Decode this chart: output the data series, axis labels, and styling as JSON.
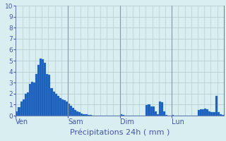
{
  "title": "Précipitations 24h ( mm )",
  "background_color": "#d8eef0",
  "plot_bg_color": "#d8eef0",
  "bar_color": "#1a5eb8",
  "bar_edge_color": "#5599ee",
  "grid_color": "#b0c8cc",
  "vline_color": "#8899aa",
  "yticks": [
    0,
    1,
    2,
    3,
    4,
    5,
    6,
    7,
    8,
    9,
    10
  ],
  "ylim": [
    0,
    10
  ],
  "day_labels": [
    "Ven",
    "Sam",
    "Dim",
    "Lun"
  ],
  "day_positions": [
    0,
    24,
    48,
    72
  ],
  "n_bars": 96,
  "values": [
    0.4,
    0.8,
    1.3,
    1.5,
    2.0,
    2.1,
    2.9,
    3.1,
    3.0,
    3.8,
    4.6,
    5.2,
    5.1,
    4.8,
    3.8,
    3.7,
    2.5,
    2.2,
    2.0,
    1.8,
    1.6,
    1.5,
    1.4,
    1.3,
    1.1,
    0.9,
    0.7,
    0.5,
    0.4,
    0.3,
    0.2,
    0.15,
    0.1,
    0.08,
    0.05,
    0.02,
    0.0,
    0.0,
    0.0,
    0.0,
    0.0,
    0.0,
    0.0,
    0.0,
    0.0,
    0.0,
    0.0,
    0.0,
    0.1,
    0.05,
    0.0,
    0.0,
    0.0,
    0.0,
    0.0,
    0.0,
    0.0,
    0.0,
    0.0,
    0.0,
    0.95,
    1.0,
    0.85,
    0.85,
    0.4,
    0.15,
    1.3,
    1.25,
    0.4,
    0.05,
    0.0,
    0.0,
    0.05,
    0.0,
    0.0,
    0.0,
    0.0,
    0.0,
    0.0,
    0.0,
    0.0,
    0.0,
    0.0,
    0.0,
    0.5,
    0.55,
    0.6,
    0.65,
    0.55,
    0.4,
    0.35,
    0.3,
    1.8,
    0.3,
    0.1,
    0.05
  ],
  "tick_color": "#4455aa",
  "label_color": "#4455aa",
  "title_fontsize": 8,
  "tick_fontsize": 6.5
}
